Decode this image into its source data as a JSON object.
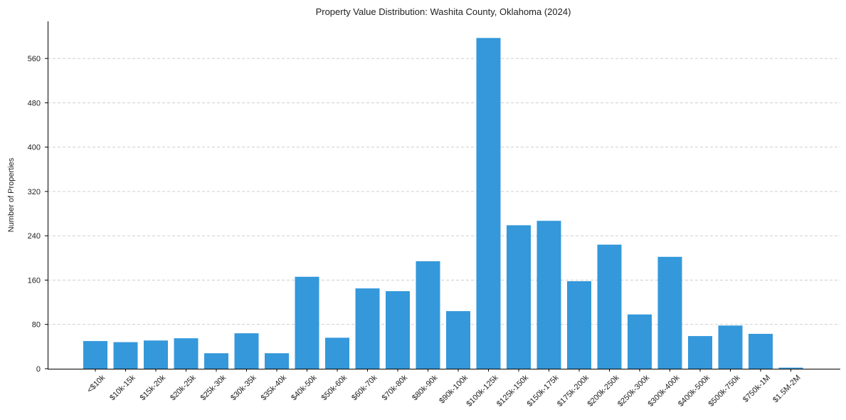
{
  "chart_data": {
    "type": "bar",
    "title": "Property Value Distribution: Washita County, Oklahoma (2024)",
    "xlabel": "",
    "ylabel": "Number of Properties",
    "categories": [
      "<$10k",
      "$10k-15k",
      "$15k-20k",
      "$20k-25k",
      "$25k-30k",
      "$30k-35k",
      "$35k-40k",
      "$40k-50k",
      "$50k-60k",
      "$60k-70k",
      "$70k-80k",
      "$80k-90k",
      "$90k-100k",
      "$100k-125k",
      "$125k-150k",
      "$150k-175k",
      "$175k-200k",
      "$200k-250k",
      "$250k-300k",
      "$300k-400k",
      "$400k-500k",
      "$500k-750k",
      "$750k-1M",
      "$1.5M-2M"
    ],
    "values": [
      50,
      48,
      51,
      55,
      28,
      64,
      28,
      166,
      56,
      145,
      140,
      194,
      104,
      597,
      259,
      267,
      158,
      224,
      98,
      202,
      59,
      78,
      63,
      2
    ],
    "ylim": [
      0,
      627
    ],
    "yticks": [
      0,
      80,
      160,
      240,
      320,
      400,
      480,
      560
    ],
    "bar_color": "#3498db",
    "grid": "y-dashed"
  }
}
